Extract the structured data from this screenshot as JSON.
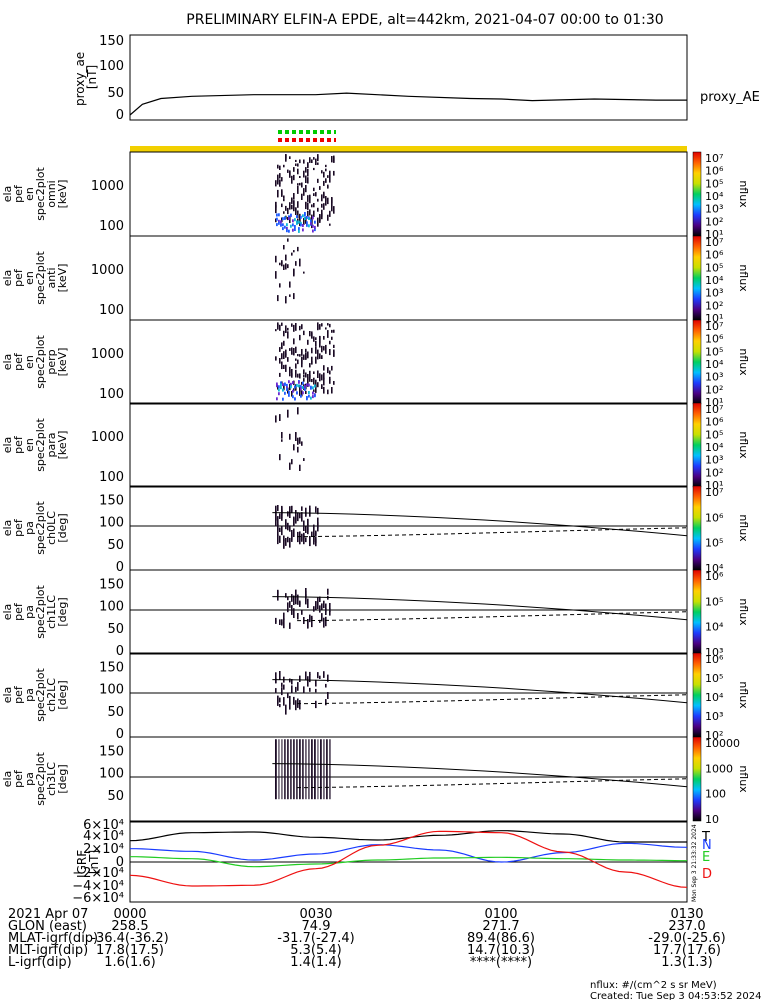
{
  "title": "PRELIMINARY ELFIN-A EPDE, alt=442km, 2021-04-07 00:00 to 01:30",
  "proxy_ae": {
    "ylabel_lines": [
      "proxy_ae",
      "[nT]"
    ],
    "yticks": [
      "150",
      "100",
      "50",
      "0"
    ],
    "legend": "proxy_AE"
  },
  "spec_panels": [
    {
      "label_lines": [
        "ela",
        "pef",
        "en",
        "spec2plot",
        "omni",
        "[keV]"
      ],
      "yticks": [
        "1000",
        "100"
      ],
      "cbar_ticks": [
        "10⁷",
        "10⁶",
        "10⁵",
        "10⁴",
        "10³",
        "10²",
        "10¹"
      ],
      "cbar_label": "nflux"
    },
    {
      "label_lines": [
        "ela",
        "pef",
        "en",
        "spec2plot",
        "anti",
        "[keV]"
      ],
      "yticks": [
        "1000",
        "100"
      ],
      "cbar_ticks": [
        "10⁷",
        "10⁶",
        "10⁵",
        "10⁴",
        "10³",
        "10²",
        "10¹"
      ],
      "cbar_label": "nflux"
    },
    {
      "label_lines": [
        "ela",
        "pef",
        "en",
        "spec2plot",
        "perp",
        "[keV]"
      ],
      "yticks": [
        "1000",
        "100"
      ],
      "cbar_ticks": [
        "10⁷",
        "10⁶",
        "10⁵",
        "10⁴",
        "10³",
        "10²",
        "10¹"
      ],
      "cbar_label": "nflux"
    },
    {
      "label_lines": [
        "ela",
        "pef",
        "en",
        "spec2plot",
        "para",
        "[keV]"
      ],
      "yticks": [
        "1000",
        "100"
      ],
      "cbar_ticks": [
        "10⁷",
        "10⁶",
        "10⁵",
        "10⁴",
        "10³",
        "10²",
        "10¹"
      ],
      "cbar_label": "nflux"
    }
  ],
  "pa_panels": [
    {
      "label_lines": [
        "ela",
        "pef",
        "pa",
        "spec2plot",
        "ch0LC",
        "[deg]"
      ],
      "yticks": [
        "150",
        "100",
        "50",
        "0"
      ],
      "cbar_ticks": [
        "10⁷",
        "10⁶",
        "10⁵",
        "10⁴"
      ],
      "cbar_label": "nflux"
    },
    {
      "label_lines": [
        "ela",
        "pef",
        "pa",
        "spec2plot",
        "ch1LC",
        "[deg]"
      ],
      "yticks": [
        "150",
        "100",
        "50",
        "0"
      ],
      "cbar_ticks": [
        "10⁶",
        "10⁵",
        "10⁴",
        "10³"
      ],
      "cbar_label": "nflux"
    },
    {
      "label_lines": [
        "ela",
        "pef",
        "pa",
        "spec2plot",
        "ch2LC",
        "[deg]"
      ],
      "yticks": [
        "150",
        "100",
        "50",
        "0"
      ],
      "cbar_ticks": [
        "10⁶",
        "10⁵",
        "10⁴",
        "10³",
        "10²"
      ],
      "cbar_label": "nflux"
    },
    {
      "label_lines": [
        "ela",
        "pef",
        "pa",
        "spec2plot",
        "ch3LC",
        "[deg]"
      ],
      "yticks": [
        "150",
        "100",
        "50"
      ],
      "cbar_ticks": [
        "10000",
        "1000",
        "100",
        "10"
      ],
      "cbar_label": "nflux"
    }
  ],
  "igrf": {
    "ylabel_lines": [
      "IGRF",
      "[nT]"
    ],
    "yticks": [
      "6×10⁴",
      "4×10⁴",
      "2×10⁴",
      "0",
      "−2×10⁴",
      "−4×10⁴",
      "−6×10⁴"
    ],
    "legend": [
      {
        "label": "T",
        "color": "#000000"
      },
      {
        "label": "N",
        "color": "#1a3cff"
      },
      {
        "label": "E",
        "color": "#22cc22"
      },
      {
        "label": "D",
        "color": "#ee1111"
      }
    ],
    "side_text": "Mon Sep  3 21:33:32 2024"
  },
  "time_ticks": [
    "0000",
    "0030",
    "0100",
    "0130"
  ],
  "ephemeris": {
    "date": "2021 Apr 07",
    "rows": [
      {
        "label": "GLON (east)",
        "values": [
          "258.5",
          "74.9",
          "271.7",
          "237.0"
        ]
      },
      {
        "label": "MLAT-igrf(dip)",
        "values": [
          "-36.4(-36.2)",
          "-31.7(-27.4)",
          "89.4(86.6)",
          "-29.0(-25.6)"
        ]
      },
      {
        "label": "MLT-igrf(dip)",
        "values": [
          "17.8(17.5)",
          "5.3(5.4)",
          "14.7(10.3)",
          "17.7(17.6)"
        ]
      },
      {
        "label": "L-igrf(dip)",
        "values": [
          "1.6(1.6)",
          "1.4(1.4)",
          "****(****)",
          "1.3(1.3)"
        ]
      }
    ]
  },
  "footer": {
    "units": "nflux: #/(cm^2 s sr MeV)",
    "created": "Created: Tue Sep  3 04:53:52 2024"
  },
  "colors": {
    "status_bar": "#f2d000",
    "marker_green": "#00cc00",
    "marker_red": "#ee0000",
    "spec_dark": "#1a0a24",
    "spec_blue": "#1e5cff",
    "spec_cyan": "#10b8d8",
    "series_t": "#000000",
    "series_n": "#1a3cff",
    "series_e": "#22cc22",
    "series_d": "#ee1111"
  },
  "chart_data": [
    {
      "type": "line",
      "title": "PRELIMINARY ELFIN-A EPDE, alt=442km, 2021-04-07 00:00 to 01:30",
      "ylabel": "proxy_ae [nT]",
      "ylim": [
        0,
        150
      ],
      "x": [
        0,
        2,
        5,
        10,
        20,
        30,
        35,
        45,
        55,
        60,
        65,
        75,
        85,
        90
      ],
      "series": [
        {
          "name": "proxy_AE",
          "values": [
            0,
            20,
            31,
            35,
            38,
            38,
            41,
            35,
            31,
            30,
            27,
            30,
            28,
            28
          ]
        }
      ]
    },
    {
      "type": "line",
      "ylabel": "IGRF [nT]",
      "ylim": [
        -60000,
        60000
      ],
      "x": [
        0,
        10,
        20,
        30,
        40,
        50,
        60,
        70,
        80,
        90
      ],
      "series": [
        {
          "name": "T",
          "values": [
            32000,
            44000,
            45000,
            37000,
            33000,
            40000,
            47000,
            42000,
            30000,
            30000
          ]
        },
        {
          "name": "N",
          "values": [
            20000,
            16000,
            3000,
            12000,
            26000,
            18000,
            0,
            14000,
            28000,
            22000
          ]
        },
        {
          "name": "E",
          "values": [
            8000,
            5000,
            -7000,
            -3000,
            3000,
            6000,
            7000,
            5000,
            3000,
            2000
          ]
        },
        {
          "name": "D",
          "values": [
            -20000,
            -36000,
            -35000,
            -10000,
            25000,
            46000,
            44000,
            15000,
            -15000,
            -38000
          ]
        }
      ]
    }
  ]
}
